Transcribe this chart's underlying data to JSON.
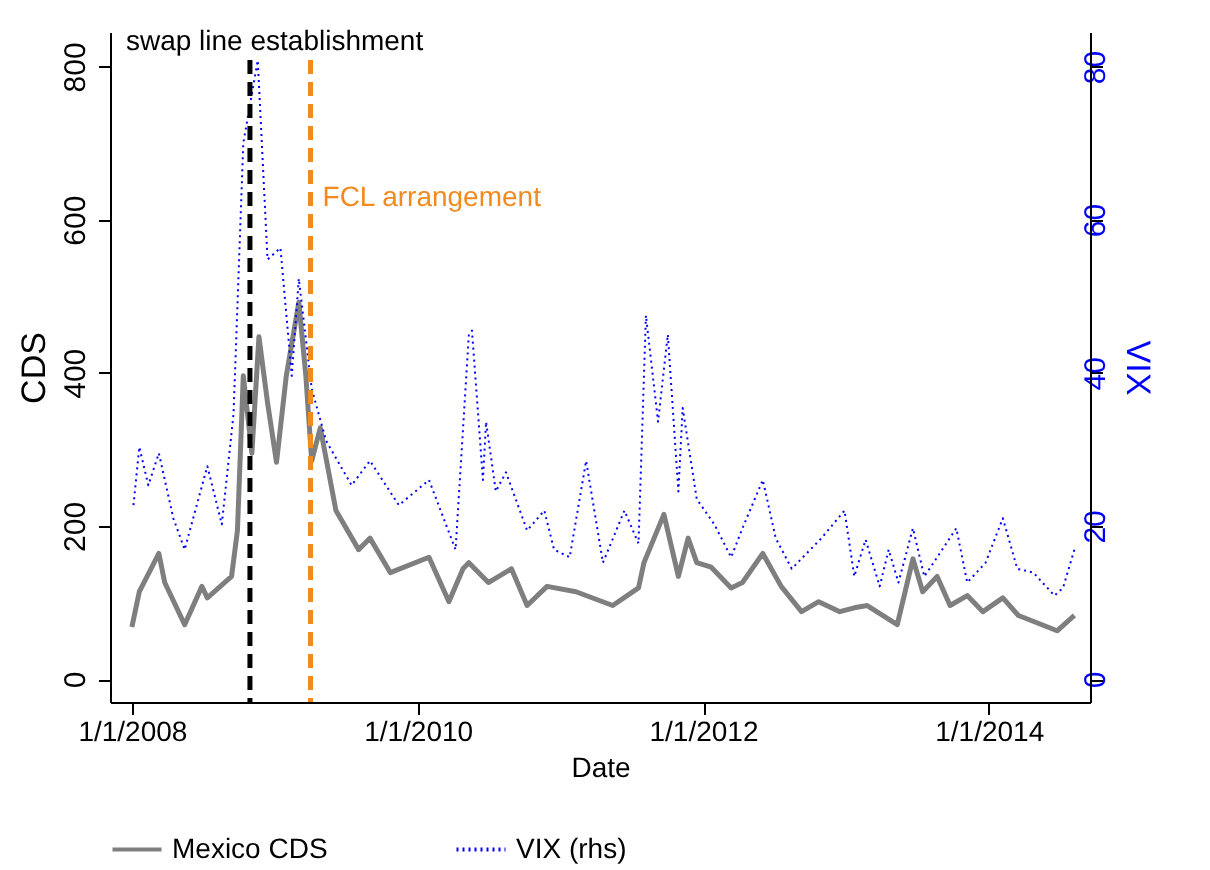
{
  "chart_data": {
    "type": "line",
    "xlabel": "Date",
    "ylabel": "CDS",
    "y2label": "VIX",
    "xlim": [
      "2007-11-06",
      "2014-09-17"
    ],
    "ylim": [
      -30,
      845
    ],
    "y2lim": [
      -3,
      84.5
    ],
    "xticks": [
      {
        "value": "2008-01-01",
        "label": "1/1/2008"
      },
      {
        "value": "2010-01-01",
        "label": "1/1/2010"
      },
      {
        "value": "2012-01-01",
        "label": "1/1/2012"
      },
      {
        "value": "2014-01-01",
        "label": "1/1/2014"
      }
    ],
    "yticks": [
      0,
      200,
      400,
      600,
      800
    ],
    "y2ticks": [
      0,
      20,
      40,
      60,
      80
    ],
    "legend": "bottom",
    "marker": "none",
    "series": [
      {
        "name": "Mexico CDS",
        "color": "#7f7f7f",
        "line_style": "solid",
        "x": [
          "2008-01-01",
          "2008-01-20",
          "2008-03-10",
          "2008-03-25",
          "2008-05-15",
          "2008-06-28",
          "2008-07-12",
          "2008-09-12",
          "2008-09-27",
          "2008-10-12",
          "2008-11-03",
          "2008-11-21",
          "2008-12-13",
          "2009-01-05",
          "2009-01-30",
          "2009-03-03",
          "2009-03-21",
          "2009-04-05",
          "2009-04-27",
          "2009-06-06",
          "2009-08-03",
          "2009-09-01",
          "2009-10-23",
          "2010-01-30",
          "2010-03-22",
          "2010-04-27",
          "2010-05-12",
          "2010-07-01",
          "2010-08-29",
          "2010-10-08",
          "2010-11-28",
          "2011-02-10",
          "2011-05-15",
          "2011-07-20",
          "2011-08-03",
          "2011-09-23",
          "2011-10-30",
          "2011-11-24",
          "2011-12-16",
          "2012-01-22",
          "2012-03-13",
          "2012-04-11",
          "2012-06-02",
          "2012-07-19",
          "2012-09-09",
          "2012-10-23",
          "2012-12-16",
          "2013-01-22",
          "2013-02-24",
          "2013-05-12",
          "2013-06-21",
          "2013-07-16",
          "2013-08-22",
          "2013-09-24",
          "2013-11-07",
          "2013-12-17",
          "2014-02-06",
          "2014-03-18",
          "2014-06-25",
          "2014-08-08"
        ],
        "values": [
          68,
          114,
          164,
          126,
          71,
          121,
          106,
          134,
          194,
          396,
          295,
          447,
          361,
          283,
          396,
          492,
          396,
          285,
          328,
          220,
          169,
          184,
          139,
          159,
          101,
          144,
          152,
          126,
          144,
          96,
          121,
          114,
          96,
          119,
          152,
          215,
          134,
          184,
          152,
          146,
          119,
          126,
          164,
          121,
          88,
          101,
          88,
          93,
          96,
          71,
          157,
          114,
          134,
          96,
          109,
          88,
          106,
          83,
          63,
          83
        ]
      },
      {
        "name": "VIX (rhs)",
        "color": "#0000ff",
        "line_style": "dotted",
        "axis": "y2",
        "x": [
          "2008-01-05",
          "2008-01-20",
          "2008-02-12",
          "2008-03-10",
          "2008-04-16",
          "2008-05-15",
          "2008-07-12",
          "2008-08-18",
          "2008-09-17",
          "2008-10-12",
          "2008-11-18",
          "2008-12-13",
          "2009-01-15",
          "2009-02-13",
          "2009-03-03",
          "2009-04-05",
          "2009-05-12",
          "2009-07-16",
          "2009-09-01",
          "2009-11-14",
          "2010-01-30",
          "2010-04-08",
          "2010-05-12",
          "2010-05-20",
          "2010-06-17",
          "2010-06-25",
          "2010-07-20",
          "2010-08-15",
          "2010-10-08",
          "2010-11-21",
          "2010-12-16",
          "2011-01-25",
          "2011-03-08",
          "2011-04-20",
          "2011-06-14",
          "2011-07-20",
          "2011-08-08",
          "2011-09-08",
          "2011-10-03",
          "2011-10-30",
          "2011-11-10",
          "2011-12-16",
          "2012-01-30",
          "2012-03-13",
          "2012-04-11",
          "2012-06-02",
          "2012-07-05",
          "2012-08-15",
          "2012-10-30",
          "2012-12-28",
          "2013-01-22",
          "2013-02-20",
          "2013-03-28",
          "2013-04-20",
          "2013-05-15",
          "2013-06-21",
          "2013-07-20",
          "2013-08-22",
          "2013-10-10",
          "2013-11-07",
          "2013-12-24",
          "2014-02-06",
          "2014-03-15",
          "2014-04-25",
          "2014-06-18",
          "2014-07-10",
          "2014-08-08"
        ],
        "values": [
          22.7,
          30.3,
          25.3,
          29.5,
          21.0,
          16.9,
          27.8,
          20.2,
          34.6,
          70,
          80.8,
          54.8,
          56.3,
          39.6,
          52.3,
          37.9,
          31.1,
          25.3,
          28.5,
          22.7,
          26,
          16.9,
          45,
          45.5,
          26,
          33.6,
          24.5,
          27,
          19.4,
          22,
          16.9,
          15.9,
          28.5,
          15.2,
          22,
          17.7,
          47.5,
          33.6,
          45,
          24.5,
          35.4,
          23.5,
          20.2,
          15.9,
          19.7,
          26,
          18.4,
          14.4,
          18.4,
          22,
          13.4,
          18.2,
          12.1,
          16.9,
          12.6,
          19.7,
          13.4,
          15.9,
          19.7,
          12.6,
          15.2,
          21,
          14.4,
          13.9,
          10.9,
          11.9,
          16.9
        ]
      }
    ],
    "ref_lines": [
      {
        "axis": "x",
        "value": "2008-10-29",
        "label": "swap line establishment",
        "color": "#000000",
        "line_style": "dashed"
      },
      {
        "axis": "x",
        "value": "2009-04-02",
        "label": "FCL arrangement",
        "color": "#f28a1e",
        "line_style": "dashed"
      }
    ]
  }
}
